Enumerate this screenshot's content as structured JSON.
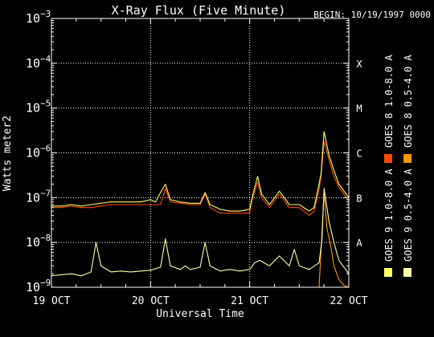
{
  "header": {
    "title": "X-Ray Flux (Five Minute)",
    "begin": "BEGIN: 10/19/1997 0000"
  },
  "chart_data": {
    "type": "line",
    "title": "X-Ray Flux (Five Minute)",
    "xlabel": "Universal Time",
    "ylabel": "Watts meter2",
    "y_scale": "log",
    "ylim": [
      1e-09,
      0.001
    ],
    "xlim": [
      0,
      3
    ],
    "x_unit": "days since 19 Oct 1997 00:00 UT",
    "x_ticks": [
      {
        "value": 0,
        "label": "19 OCT"
      },
      {
        "value": 1,
        "label": "20 OCT"
      },
      {
        "value": 2,
        "label": "21 OCT"
      },
      {
        "value": 3,
        "label": "22 OCT"
      }
    ],
    "y_ticks": [
      {
        "exp": -9,
        "base": "10",
        "sup": "−9"
      },
      {
        "exp": -8,
        "base": "10",
        "sup": "−8"
      },
      {
        "exp": -7,
        "base": "10",
        "sup": "−7"
      },
      {
        "exp": -6,
        "base": "10",
        "sup": "−6"
      },
      {
        "exp": -5,
        "base": "10",
        "sup": "−5"
      },
      {
        "exp": -4,
        "base": "10",
        "sup": "−4"
      },
      {
        "exp": -3,
        "base": "10",
        "sup": "−3"
      }
    ],
    "flare_classes": [
      {
        "label": "A",
        "exp": -8
      },
      {
        "label": "B",
        "exp": -7
      },
      {
        "label": "C",
        "exp": -6
      },
      {
        "label": "M",
        "exp": -5
      },
      {
        "label": "X",
        "exp": -4
      }
    ],
    "grid": {
      "horizontal_dotted_at_exp": [
        -8,
        -7,
        -6,
        -5,
        -4
      ],
      "vertical_dotted_at_x": [
        1,
        2
      ]
    },
    "legend_position": "right, vertical",
    "series": [
      {
        "name": "GOES 8 1.0-8.0 A",
        "color": "#ff4a00",
        "x": [
          0,
          0.1,
          0.2,
          0.3,
          0.4,
          0.5,
          0.6,
          0.7,
          0.8,
          0.9,
          1.0,
          1.1,
          1.15,
          1.2,
          1.3,
          1.4,
          1.5,
          1.55,
          1.6,
          1.7,
          1.8,
          1.9,
          2.0,
          2.02,
          2.08,
          2.12,
          2.2,
          2.3,
          2.4,
          2.5,
          2.6,
          2.65,
          2.7,
          2.72,
          2.75,
          2.8,
          2.85,
          2.9,
          3.0
        ],
        "y": [
          6e-08,
          6e-08,
          6.5e-08,
          6e-08,
          6e-08,
          6.5e-08,
          7e-08,
          7e-08,
          7e-08,
          7e-08,
          7e-08,
          7e-08,
          1.6e-07,
          8e-08,
          7.5e-08,
          7e-08,
          7e-08,
          1.2e-07,
          6e-08,
          4.5e-08,
          4.5e-08,
          4.5e-08,
          4.5e-08,
          8e-08,
          2.2e-07,
          1e-07,
          6e-08,
          1.2e-07,
          6e-08,
          6e-08,
          4e-08,
          5e-08,
          1.5e-07,
          3e-07,
          1.8e-06,
          7e-07,
          3e-07,
          1.7e-07,
          8.5e-08
        ]
      },
      {
        "name": "GOES 8 0.5-4.0 A",
        "color": "#ff9900",
        "x": [
          2.05,
          2.3,
          2.6,
          2.7,
          2.72,
          2.75,
          2.78,
          2.82,
          2.85,
          2.9,
          2.95,
          3.0
        ],
        "y": [
          1e-09,
          1e-09,
          1e-09,
          1e-09,
          7e-09,
          1.3e-07,
          2e-08,
          8e-09,
          3e-09,
          1.5e-09,
          1.1e-09,
          1e-09
        ]
      },
      {
        "name": "GOES 9 1.0-8.0 A",
        "color": "#ffff66",
        "x": [
          0,
          0.1,
          0.2,
          0.3,
          0.4,
          0.5,
          0.6,
          0.7,
          0.8,
          0.9,
          1.0,
          1.05,
          1.1,
          1.15,
          1.2,
          1.3,
          1.4,
          1.5,
          1.55,
          1.6,
          1.7,
          1.8,
          1.9,
          2.0,
          2.02,
          2.08,
          2.12,
          2.2,
          2.3,
          2.4,
          2.5,
          2.6,
          2.65,
          2.7,
          2.72,
          2.75,
          2.8,
          2.85,
          2.9,
          3.0
        ],
        "y": [
          6.5e-08,
          6.5e-08,
          7e-08,
          6.5e-08,
          7e-08,
          7.5e-08,
          8e-08,
          8e-08,
          8e-08,
          8e-08,
          9e-08,
          8e-08,
          1.3e-07,
          2e-07,
          9e-08,
          8e-08,
          7.5e-08,
          7.5e-08,
          1.3e-07,
          7e-08,
          5.5e-08,
          5e-08,
          5e-08,
          5.5e-08,
          9e-08,
          3e-07,
          1.2e-07,
          7e-08,
          1.4e-07,
          7e-08,
          7e-08,
          5e-08,
          6e-08,
          2e-07,
          3.5e-07,
          3e-06,
          9e-07,
          4e-07,
          2e-07,
          1e-07
        ]
      },
      {
        "name": "GOES 9 0.5-4.0 A",
        "color": "#ffffaa",
        "x": [
          0,
          0.1,
          0.2,
          0.3,
          0.4,
          0.45,
          0.5,
          0.6,
          0.7,
          0.8,
          0.9,
          1.0,
          1.1,
          1.15,
          1.2,
          1.3,
          1.35,
          1.4,
          1.5,
          1.55,
          1.6,
          1.7,
          1.8,
          1.9,
          2.0,
          2.05,
          2.1,
          2.2,
          2.3,
          2.4,
          2.45,
          2.5,
          2.6,
          2.7,
          2.73,
          2.75,
          2.8,
          2.85,
          2.9,
          3.0
        ],
        "y": [
          1.8e-09,
          1.9e-09,
          2e-09,
          1.8e-09,
          2.2e-09,
          1e-08,
          3e-09,
          2.2e-09,
          2.3e-09,
          2.2e-09,
          2.3e-09,
          2.4e-09,
          2.8e-09,
          1.2e-08,
          3e-09,
          2.5e-09,
          3e-09,
          2.5e-09,
          2.8e-09,
          1e-08,
          3e-09,
          2.3e-09,
          2.5e-09,
          2.3e-09,
          2.5e-09,
          3.5e-09,
          4e-09,
          3e-09,
          5e-09,
          3e-09,
          7e-09,
          3e-09,
          2.5e-09,
          3.5e-09,
          1.2e-08,
          1.6e-07,
          3e-08,
          1e-08,
          4e-09,
          2e-09
        ]
      }
    ]
  }
}
